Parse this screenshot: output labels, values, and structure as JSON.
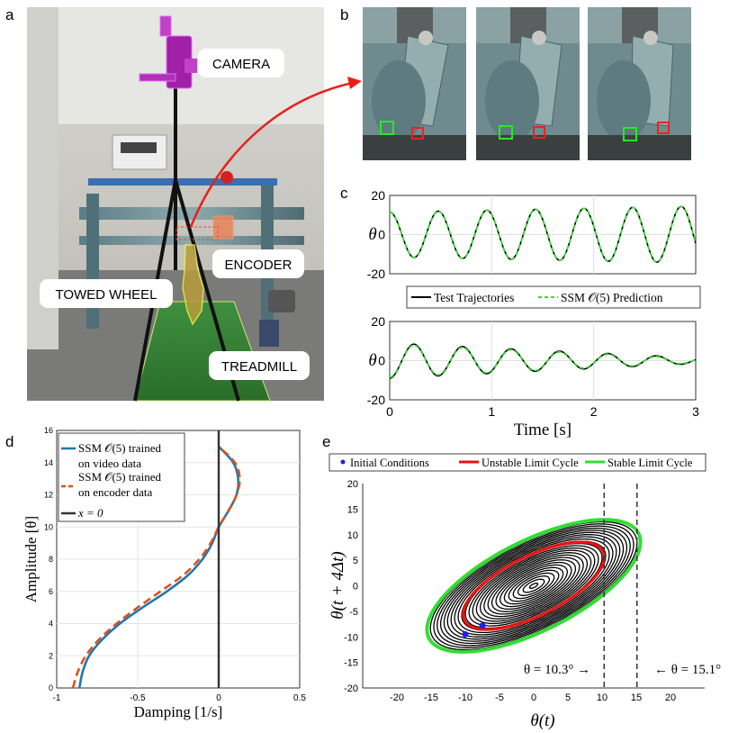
{
  "panel_labels": {
    "a": "a",
    "b": "b",
    "c": "c",
    "d": "d",
    "e": "e"
  },
  "photo_a": {
    "callouts": {
      "camera": "CAMERA",
      "encoder": "ENCODER",
      "towed_wheel": "TOWED WHEEL",
      "treadmill": "TREADMILL"
    }
  },
  "chart_data": [
    {
      "id": "c",
      "type": "line",
      "legend": [
        "Test Trajectories",
        "SSM 𝒪(5) Prediction"
      ],
      "legend_position": "between subplots, right",
      "xlabel": "Time [s]",
      "x_ticks": [
        "0",
        "1",
        "2",
        "3"
      ],
      "xlim": [
        0,
        3
      ],
      "grid": true,
      "subplots": [
        {
          "ylabel": "θ",
          "ylim": [
            -20,
            20
          ],
          "y_ticks": [
            "20",
            "0",
            "-20"
          ],
          "series": [
            {
              "name": "Test Trajectories",
              "color": "#000000",
              "amp_start": 11.5,
              "amp_end": 14.5,
              "freq_hz": 2.1,
              "phase": 0.0
            },
            {
              "name": "SSM 𝒪(5) Prediction",
              "color": "#33dd33",
              "amp_start": 11.5,
              "amp_end": 14.5,
              "freq_hz": 2.1,
              "phase": 0.0
            }
          ]
        },
        {
          "ylabel": "θ",
          "ylim": [
            -20,
            20
          ],
          "y_ticks": [
            "20",
            "0",
            "-20"
          ],
          "series": [
            {
              "name": "Test Trajectories",
              "color": "#000000",
              "amp_start": 9,
              "amp_end": 1.5,
              "freq_hz": 2.1,
              "phase": 3.14
            },
            {
              "name": "SSM 𝒪(5) Prediction",
              "color": "#33dd33",
              "amp_start": 8.5,
              "amp_end": 1.2,
              "freq_hz": 2.1,
              "phase": 3.14
            }
          ]
        }
      ]
    },
    {
      "id": "d",
      "type": "line",
      "xlabel": "Damping [1/s]",
      "ylabel": "Amplitude [θ]",
      "xlim": [
        -1,
        0.5
      ],
      "ylim": [
        0,
        16
      ],
      "x_ticks": [
        "-1",
        "-0.5",
        "0",
        "0.5"
      ],
      "y_ticks": [
        "0",
        "2",
        "4",
        "6",
        "8",
        "10",
        "12",
        "14",
        "16"
      ],
      "grid": true,
      "legend": [
        "SSM 𝒪(5) trained on video data",
        "SSM 𝒪(5) trained on encoder data",
        "x = 0"
      ],
      "legend_position": "top-left",
      "series": [
        {
          "name": "SSM 𝒪(5) trained on video data",
          "color": "#1f77b4",
          "style": "solid",
          "points": [
            [
              -0.86,
              0
            ],
            [
              -0.84,
              1
            ],
            [
              -0.8,
              2
            ],
            [
              -0.72,
              3
            ],
            [
              -0.61,
              4
            ],
            [
              -0.47,
              5
            ],
            [
              -0.32,
              6
            ],
            [
              -0.19,
              7
            ],
            [
              -0.1,
              8
            ],
            [
              -0.04,
              9
            ],
            [
              0.0,
              10
            ],
            [
              0.06,
              11
            ],
            [
              0.11,
              12
            ],
            [
              0.12,
              13
            ],
            [
              0.09,
              14
            ],
            [
              0.0,
              15
            ]
          ]
        },
        {
          "name": "SSM 𝒪(5) trained on encoder data",
          "color": "#d95319",
          "style": "dashed",
          "points": [
            [
              -0.9,
              0
            ],
            [
              -0.87,
              1
            ],
            [
              -0.82,
              2
            ],
            [
              -0.74,
              3
            ],
            [
              -0.63,
              4
            ],
            [
              -0.5,
              5
            ],
            [
              -0.36,
              6
            ],
            [
              -0.22,
              7
            ],
            [
              -0.12,
              8
            ],
            [
              -0.05,
              9
            ],
            [
              0.0,
              10
            ],
            [
              0.06,
              11
            ],
            [
              0.11,
              12
            ],
            [
              0.13,
              13
            ],
            [
              0.1,
              14
            ],
            [
              0.0,
              15
            ]
          ]
        },
        {
          "name": "x = 0",
          "color": "#333333",
          "style": "solid",
          "points": [
            [
              0,
              0
            ],
            [
              0,
              16
            ]
          ]
        }
      ]
    },
    {
      "id": "e",
      "type": "line",
      "xlabel": "θ(t)",
      "ylabel": "θ(t + 4Δt)",
      "xlim": [
        -25,
        25
      ],
      "ylim": [
        -20,
        20
      ],
      "x_ticks": [
        "-20",
        "-15",
        "-10",
        "-5",
        "0",
        "5",
        "10",
        "15",
        "20"
      ],
      "y_ticks": [
        "20",
        "15",
        "10",
        "5",
        "0",
        "-5",
        "-10",
        "-15",
        "-20"
      ],
      "legend": [
        "Initial Conditions",
        "Unstable Limit Cycle",
        "Stable Limit Cycle"
      ],
      "legend_position": "top",
      "stable_limit_cycle": {
        "amplitude": 15.1,
        "color": "#33dd33"
      },
      "unstable_limit_cycle": {
        "amplitude": 10.3,
        "color": "#ee1111"
      },
      "initial_conditions": [
        [
          -10,
          -9.5
        ],
        [
          -7.5,
          -7.8
        ]
      ],
      "vertical_lines": [
        {
          "x": 10.3,
          "label": "θ = 10.3° →"
        },
        {
          "x": 15.1,
          "label": "← θ = 15.1°"
        }
      ]
    }
  ]
}
